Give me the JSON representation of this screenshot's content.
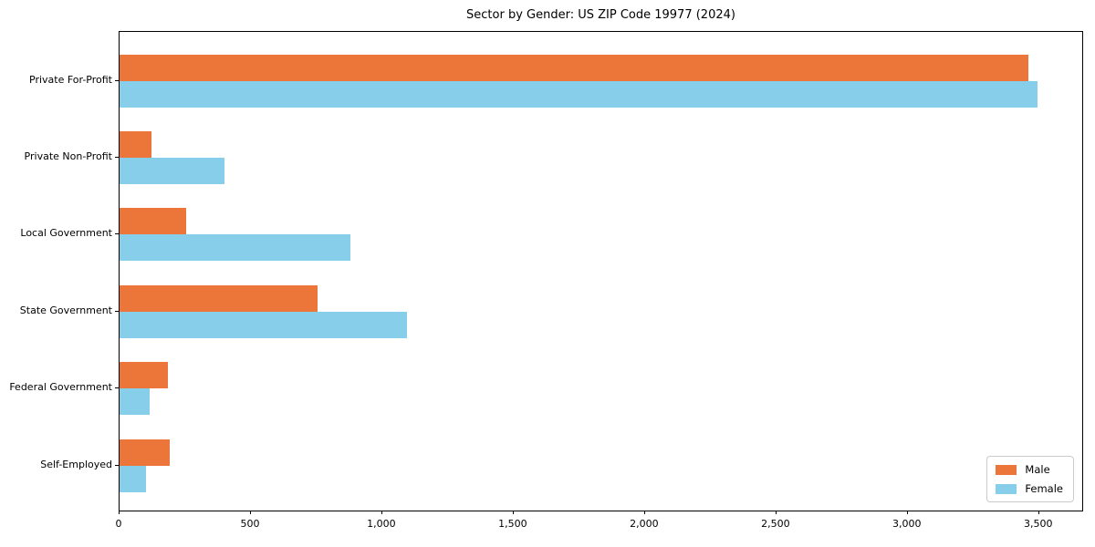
{
  "chart_data": {
    "type": "bar",
    "orientation": "horizontal",
    "title": "Sector by Gender: US ZIP Code 19977 (2024)",
    "categories": [
      "Private For-Profit",
      "Private Non-Profit",
      "Local Government",
      "State Government",
      "Federal Government",
      "Self-Employed"
    ],
    "series": [
      {
        "name": "Male",
        "color": "#EC7639",
        "values": [
          3460,
          120,
          255,
          755,
          185,
          190
        ]
      },
      {
        "name": "Female",
        "color": "#87CEEB",
        "values": [
          3495,
          400,
          880,
          1095,
          115,
          100
        ]
      }
    ],
    "xlabel": "",
    "ylabel": "",
    "xlim": [
      0,
      3671
    ],
    "xtick_values": [
      0,
      500,
      1000,
      1500,
      2000,
      2500,
      3000,
      3500
    ],
    "xtick_labels": [
      "0",
      "500",
      "1,000",
      "1,500",
      "2,000",
      "2,500",
      "3,000",
      "3,500"
    ],
    "grid": false,
    "legend_position": "lower right"
  }
}
